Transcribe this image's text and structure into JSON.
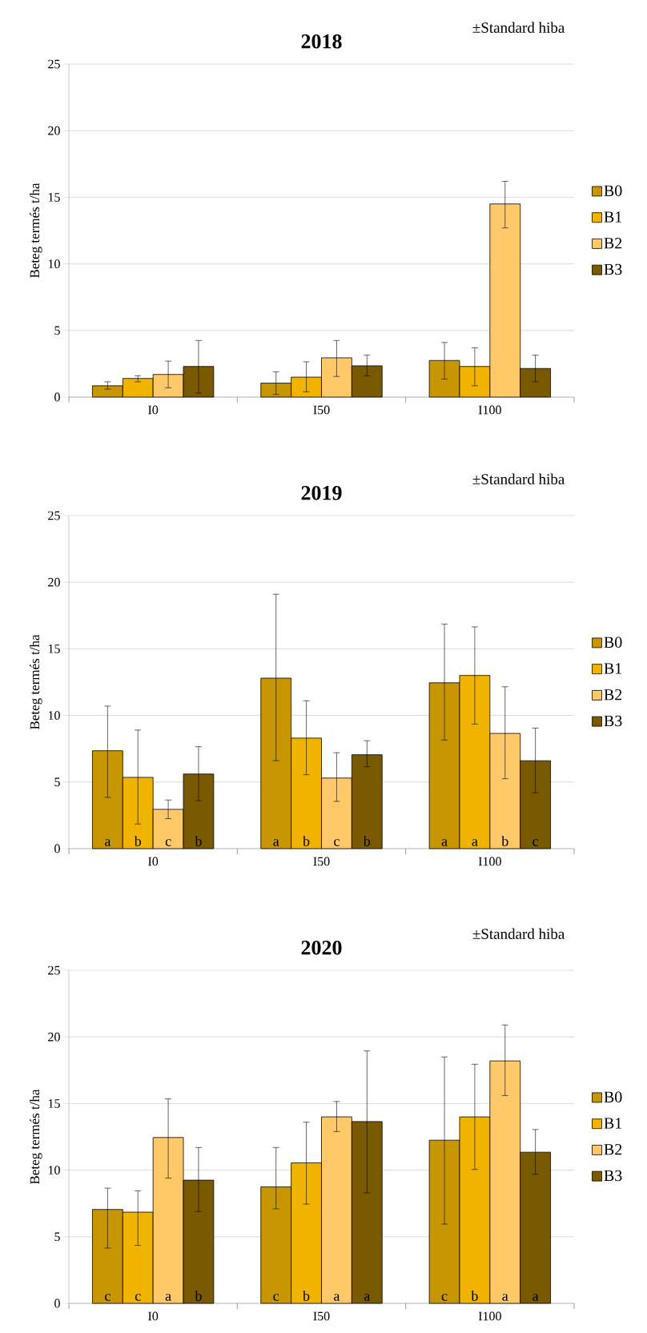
{
  "chart_data": [
    {
      "type": "bar",
      "title": "2018",
      "annotations": [
        "±Standard hiba"
      ],
      "ylabel": "Beteg termés t/ha",
      "categories": [
        "I0",
        "I50",
        "I100"
      ],
      "ylim": [
        0,
        25
      ],
      "yticks": [
        0,
        5,
        10,
        15,
        20,
        25
      ],
      "grid": "y",
      "legend": "right",
      "series": [
        {
          "name": "B0",
          "color": "#c89600",
          "values": [
            0.85,
            1.05,
            2.75
          ],
          "errors": [
            [
              0.6,
              1.15
            ],
            [
              0.2,
              1.9
            ],
            [
              1.35,
              4.1
            ]
          ]
        },
        {
          "name": "B1",
          "color": "#f0b400",
          "values": [
            1.4,
            1.5,
            2.3
          ],
          "errors": [
            [
              1.15,
              1.6
            ],
            [
              0.4,
              2.65
            ],
            [
              0.85,
              3.7
            ]
          ]
        },
        {
          "name": "B2",
          "color": "#ffc96a",
          "values": [
            1.7,
            2.95,
            14.5
          ],
          "errors": [
            [
              0.7,
              2.7
            ],
            [
              1.55,
              4.25
            ],
            [
              12.7,
              16.2
            ]
          ]
        },
        {
          "name": "B3",
          "color": "#7a5a00",
          "values": [
            2.3,
            2.35,
            2.15
          ],
          "errors": [
            [
              0.3,
              4.25
            ],
            [
              1.6,
              3.15
            ],
            [
              1.15,
              3.15
            ]
          ]
        }
      ]
    },
    {
      "type": "bar",
      "title": "2019",
      "annotations": [
        "±Standard hiba"
      ],
      "ylabel": "Beteg termés t/ha",
      "categories": [
        "I0",
        "I50",
        "I100"
      ],
      "ylim": [
        0,
        25
      ],
      "yticks": [
        0,
        5,
        10,
        15,
        20,
        25
      ],
      "grid": "y",
      "legend": "right",
      "series": [
        {
          "name": "B0",
          "color": "#c89600",
          "values": [
            7.35,
            12.8,
            12.45
          ],
          "errors": [
            [
              3.85,
              10.7
            ],
            [
              6.6,
              19.1
            ],
            [
              8.15,
              16.85
            ]
          ],
          "value_labels": [
            "a",
            "a",
            "a"
          ]
        },
        {
          "name": "B1",
          "color": "#f0b400",
          "values": [
            5.35,
            8.3,
            13.0
          ],
          "errors": [
            [
              1.85,
              8.9
            ],
            [
              5.55,
              11.1
            ],
            [
              9.35,
              16.65
            ]
          ],
          "value_labels": [
            "b",
            "b",
            "a"
          ]
        },
        {
          "name": "B2",
          "color": "#ffc96a",
          "values": [
            2.95,
            5.3,
            8.65
          ],
          "errors": [
            [
              2.25,
              3.65
            ],
            [
              3.55,
              7.2
            ],
            [
              5.25,
              12.15
            ]
          ],
          "value_labels": [
            "c",
            "c",
            "b"
          ]
        },
        {
          "name": "B3",
          "color": "#7a5a00",
          "values": [
            5.6,
            7.05,
            6.6
          ],
          "errors": [
            [
              3.6,
              7.65
            ],
            [
              6.15,
              8.1
            ],
            [
              4.2,
              9.05
            ]
          ],
          "value_labels": [
            "b",
            "b",
            "c"
          ]
        }
      ]
    },
    {
      "type": "bar",
      "title": "2020",
      "annotations": [
        "±Standard hiba"
      ],
      "ylabel": "Beteg termés t/ha",
      "categories": [
        "I0",
        "I50",
        "I100"
      ],
      "ylim": [
        0,
        25
      ],
      "yticks": [
        0,
        5,
        10,
        15,
        20,
        25
      ],
      "grid": "y",
      "legend": "right",
      "series": [
        {
          "name": "B0",
          "color": "#c89600",
          "values": [
            7.05,
            8.75,
            12.25
          ],
          "errors": [
            [
              4.15,
              8.65
            ],
            [
              7.1,
              11.7
            ],
            [
              5.95,
              18.5
            ]
          ],
          "value_labels": [
            "c",
            "c",
            "c"
          ]
        },
        {
          "name": "B1",
          "color": "#f0b400",
          "values": [
            6.85,
            10.55,
            14.0
          ],
          "errors": [
            [
              4.35,
              8.45
            ],
            [
              7.45,
              13.6
            ],
            [
              10.05,
              17.95
            ]
          ],
          "value_labels": [
            "c",
            "b",
            "b"
          ]
        },
        {
          "name": "B2",
          "color": "#ffc96a",
          "values": [
            12.45,
            14.0,
            18.2
          ],
          "errors": [
            [
              9.4,
              15.35
            ],
            [
              12.9,
              15.15
            ],
            [
              15.6,
              20.9
            ]
          ],
          "value_labels": [
            "a",
            "a",
            "a"
          ]
        },
        {
          "name": "B3",
          "color": "#7a5a00",
          "values": [
            9.25,
            13.65,
            11.35
          ],
          "errors": [
            [
              6.9,
              11.7
            ],
            [
              8.3,
              18.95
            ],
            [
              9.7,
              13.05
            ]
          ],
          "value_labels": [
            "b",
            "a",
            "a"
          ]
        }
      ]
    }
  ]
}
